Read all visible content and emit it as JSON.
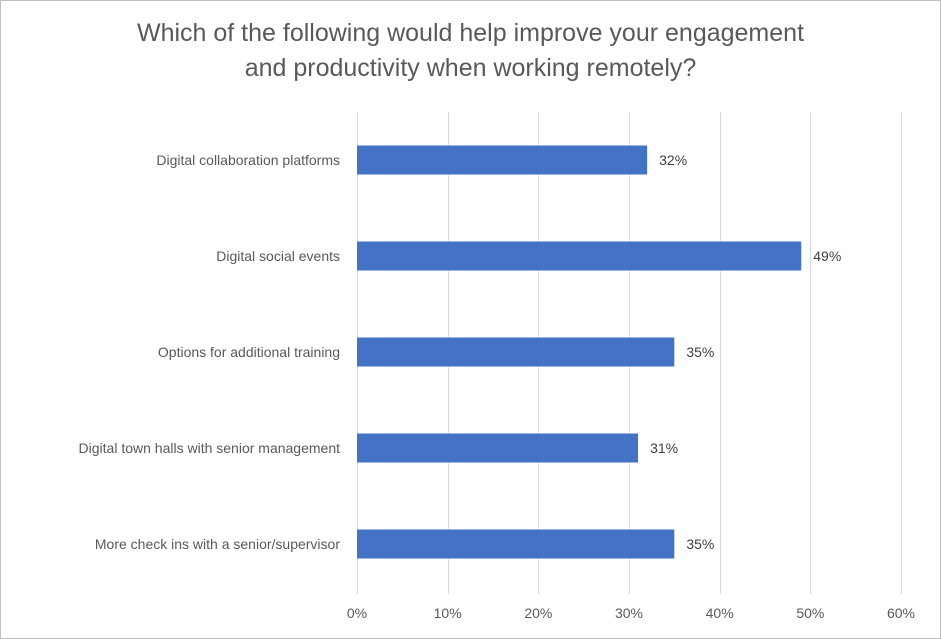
{
  "chart_data": {
    "type": "bar",
    "orientation": "horizontal",
    "title_lines": [
      "Which of the following would help improve your engagement",
      "and productivity when working remotely?"
    ],
    "categories": [
      "Digital collaboration platforms",
      "Digital social events",
      "Options for additional training",
      "Digital town halls with senior management",
      "More check ins with a senior/supervisor"
    ],
    "values": [
      32,
      49,
      35,
      31,
      35
    ],
    "value_labels": [
      "32%",
      "49%",
      "35%",
      "31%",
      "35%"
    ],
    "xlim": [
      0,
      60
    ],
    "x_ticks": [
      0,
      10,
      20,
      30,
      40,
      50,
      60
    ],
    "x_tick_labels": [
      "0%",
      "10%",
      "20%",
      "30%",
      "40%",
      "50%",
      "60%"
    ],
    "xlabel": "",
    "ylabel": "",
    "grid": true,
    "legend": "none",
    "bar_color": "#4472c4",
    "gridline_color": "#d9d9d9",
    "text_color": "#595959"
  }
}
